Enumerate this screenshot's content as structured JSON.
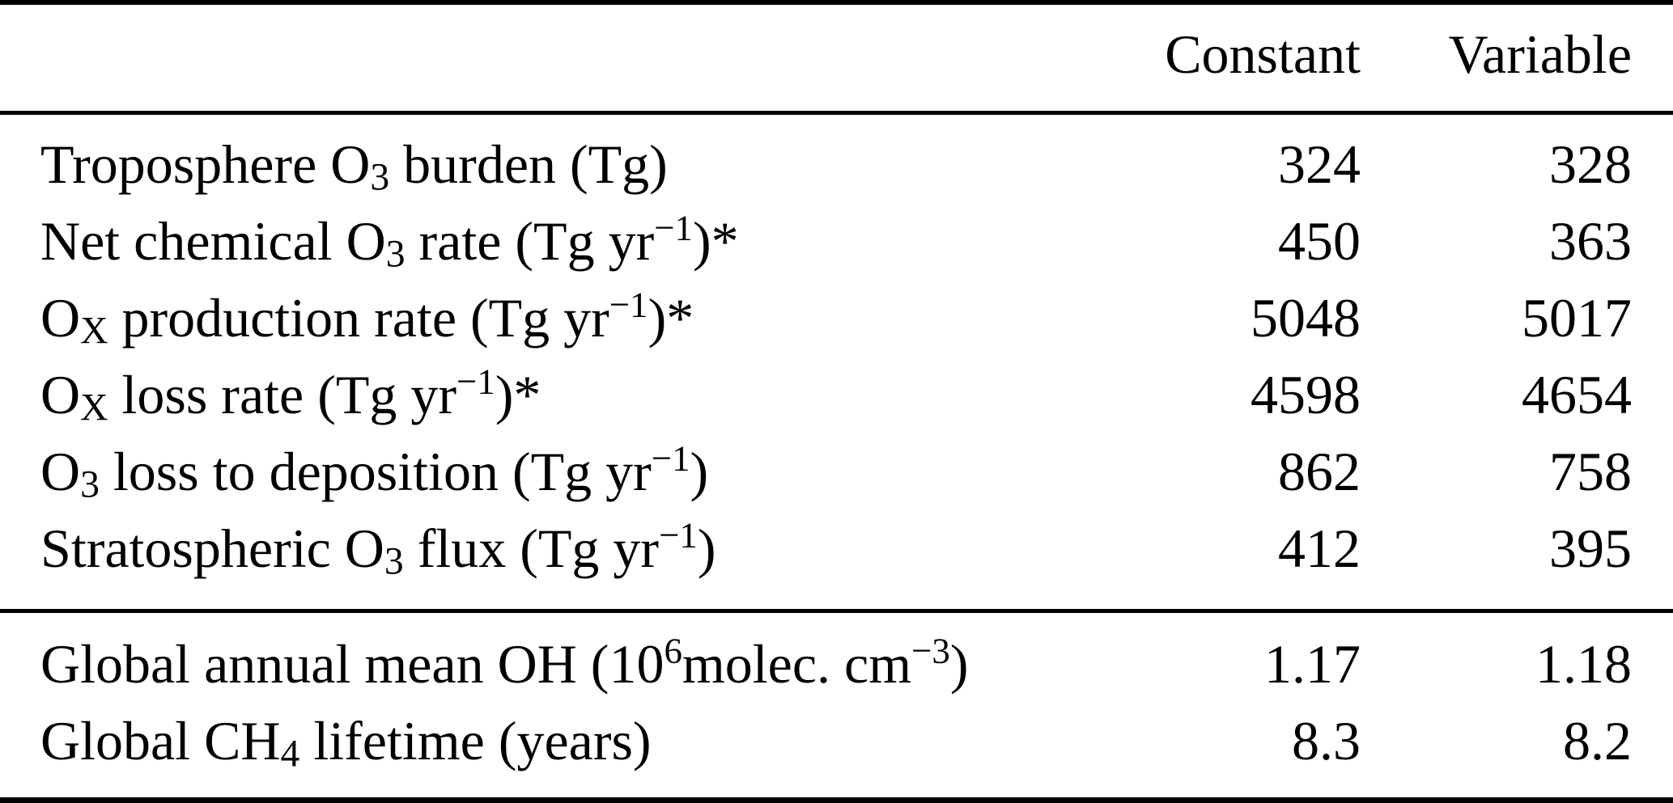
{
  "page": {
    "background": "#ffffff",
    "text_color": "#000000",
    "rule_color": "#000000"
  },
  "table": {
    "columns": [
      {
        "key": "label",
        "label": ""
      },
      {
        "key": "constant",
        "label": "Constant"
      },
      {
        "key": "variable",
        "label": "Variable"
      }
    ],
    "sections": [
      {
        "name": "ozone-budget",
        "rows": [
          {
            "label": [
              {
                "t": "Troposphere O"
              },
              {
                "t": "3",
                "v": "sub"
              },
              {
                "t": " burden (Tg)"
              }
            ],
            "values": [
              "324",
              "328"
            ]
          },
          {
            "label": [
              {
                "t": "Net chemical O"
              },
              {
                "t": "3",
                "v": "sub"
              },
              {
                "t": " rate (Tg yr"
              },
              {
                "t": "−1",
                "v": "sup"
              },
              {
                "t": ")*"
              }
            ],
            "values": [
              "450",
              "363"
            ]
          },
          {
            "label": [
              {
                "t": "O"
              },
              {
                "t": "X",
                "v": "sub"
              },
              {
                "t": " production rate (Tg yr"
              },
              {
                "t": "−1",
                "v": "sup"
              },
              {
                "t": ")*"
              }
            ],
            "values": [
              "5048",
              "5017"
            ]
          },
          {
            "label": [
              {
                "t": "O"
              },
              {
                "t": "X",
                "v": "sub"
              },
              {
                "t": " loss rate (Tg yr"
              },
              {
                "t": "−1",
                "v": "sup"
              },
              {
                "t": ")*"
              }
            ],
            "values": [
              "4598",
              "4654"
            ]
          },
          {
            "label": [
              {
                "t": "O"
              },
              {
                "t": "3",
                "v": "sub"
              },
              {
                "t": " loss to deposition (Tg yr"
              },
              {
                "t": "−1",
                "v": "sup"
              },
              {
                "t": ")"
              }
            ],
            "values": [
              "862",
              "758"
            ]
          },
          {
            "label": [
              {
                "t": "Stratospheric O"
              },
              {
                "t": "3",
                "v": "sub"
              },
              {
                "t": " flux (Tg yr"
              },
              {
                "t": "−1",
                "v": "sup"
              },
              {
                "t": ")"
              }
            ],
            "values": [
              "412",
              "395"
            ]
          }
        ]
      },
      {
        "name": "oh-methane",
        "rows": [
          {
            "label": [
              {
                "t": "Global annual mean OH (10"
              },
              {
                "t": "6",
                "v": "sup"
              },
              {
                "t": "molec. cm"
              },
              {
                "t": "−3",
                "v": "sup"
              },
              {
                "t": ")"
              }
            ],
            "values": [
              "1.17",
              "1.18"
            ]
          },
          {
            "label": [
              {
                "t": "Global CH"
              },
              {
                "t": "4",
                "v": "sub"
              },
              {
                "t": " lifetime (years)"
              }
            ],
            "values": [
              "8.3",
              "8.2"
            ]
          }
        ]
      }
    ]
  }
}
